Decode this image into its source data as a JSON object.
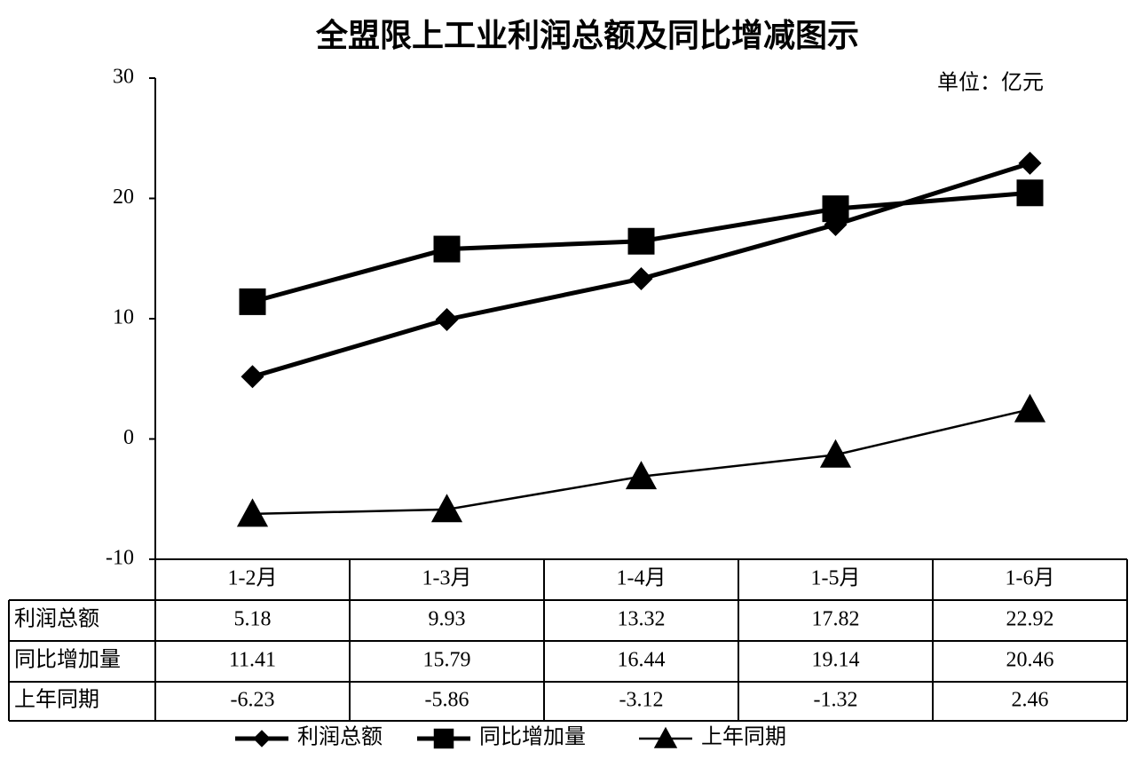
{
  "chart_data": {
    "type": "line",
    "title": "全盟限上工业利润总额及同比增减图示",
    "unit": "单位：亿元",
    "categories": [
      "1-2月",
      "1-3月",
      "1-4月",
      "1-5月",
      "1-6月"
    ],
    "series": [
      {
        "name": "利润总额",
        "color": "#000000",
        "marker": "diamond",
        "values": [
          5.18,
          9.93,
          13.32,
          17.82,
          22.92
        ]
      },
      {
        "name": "同比增加量",
        "color": "#000000",
        "marker": "square",
        "values": [
          11.41,
          15.79,
          16.44,
          19.14,
          20.46
        ]
      },
      {
        "name": "上年同期",
        "color": "#000000",
        "marker": "triangle",
        "values": [
          -6.23,
          -5.86,
          -3.12,
          -1.32,
          2.46
        ]
      }
    ],
    "ylim": [
      -10,
      30
    ],
    "yticks": [
      -10,
      0,
      10,
      20,
      30
    ],
    "grid": false,
    "legend": "bottom",
    "data_table": true
  }
}
